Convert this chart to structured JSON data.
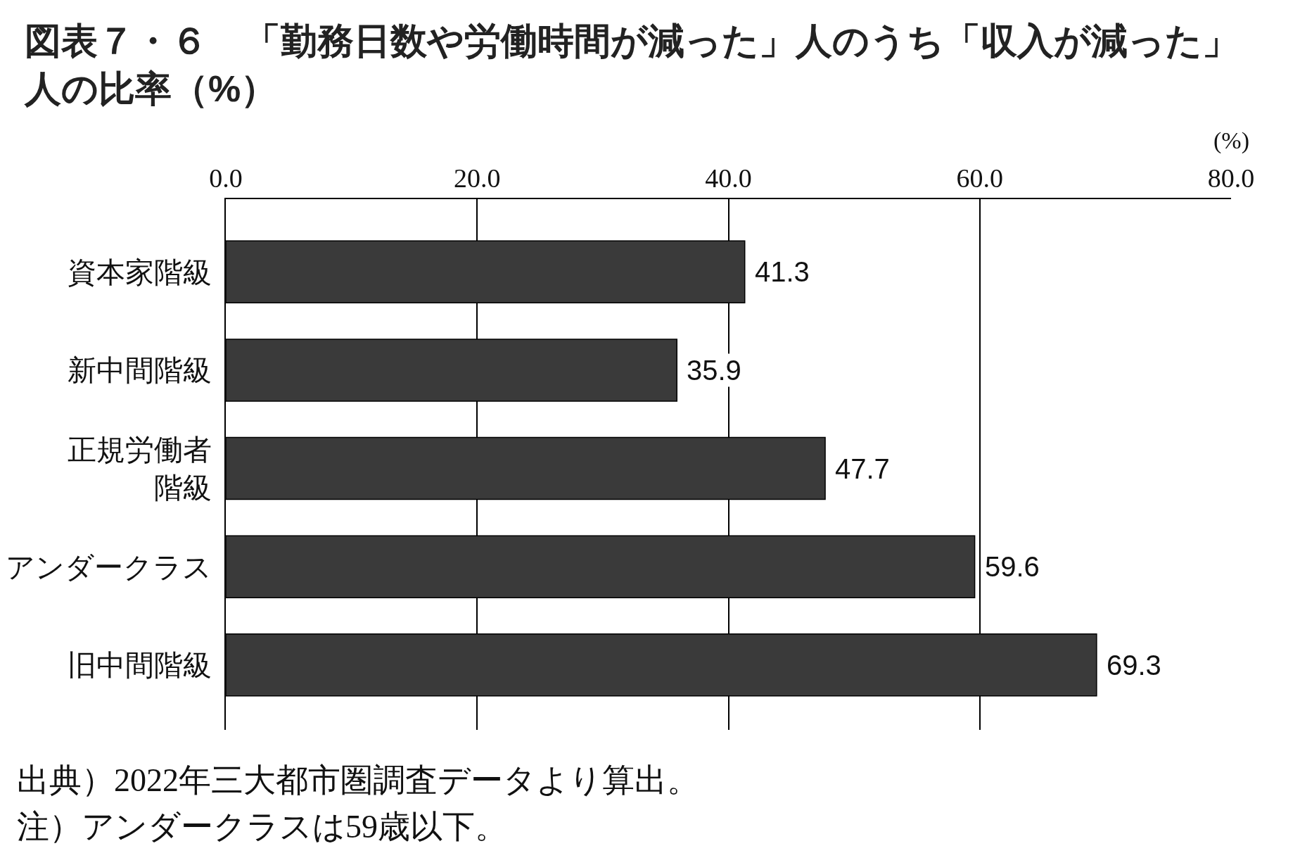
{
  "chart_data": {
    "type": "bar",
    "orientation": "horizontal",
    "title": "図表７・６　「勤務日数や労働時間が減った」人のうち「収入が減った」人の比率（%）",
    "xlabel": "(%)",
    "categories": [
      "資本家階級",
      "新中間階級",
      "正規労働者階級",
      "アンダークラス",
      "旧中間階級"
    ],
    "values": [
      41.3,
      35.9,
      47.7,
      59.6,
      69.3
    ],
    "color": "#3a3a3a",
    "xlim": [
      0,
      80
    ],
    "xticks": [
      {
        "value": 0,
        "label": "0.0"
      },
      {
        "value": 20,
        "label": "20.0"
      },
      {
        "value": 40,
        "label": "40.0"
      },
      {
        "value": 60,
        "label": "60.0"
      },
      {
        "value": 80,
        "label": "80.0"
      }
    ],
    "grid": "x",
    "data_labels": true,
    "annotations": [
      "出典）2022年三大都市圏調査データより算出。",
      "注）アンダークラスは59歳以下。"
    ]
  }
}
